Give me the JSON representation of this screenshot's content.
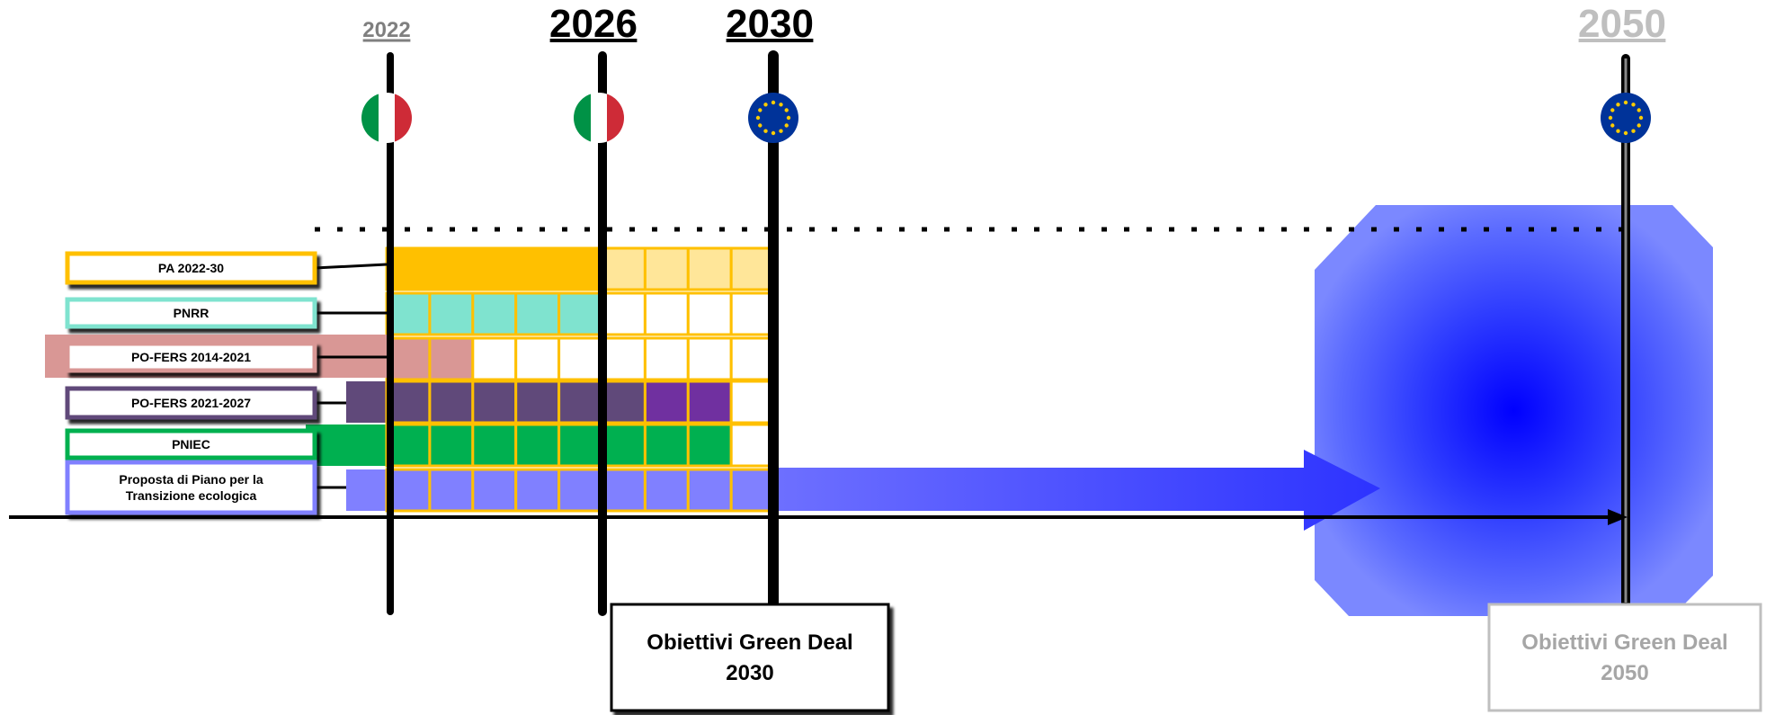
{
  "years": [
    {
      "label": "2022",
      "style": "minor",
      "flag": "italy"
    },
    {
      "label": "2026",
      "style": "major",
      "flag": "italy"
    },
    {
      "label": "2030",
      "style": "major",
      "flag": "eu"
    },
    {
      "label": "2050",
      "style": "faded",
      "flag": "eu"
    }
  ],
  "programs": [
    {
      "label": "PA 2022-30",
      "border": "#FFC000",
      "fill": "#FFC000"
    },
    {
      "label": "PNRR",
      "border": "#7FE3CF",
      "fill": "#7FE3CF"
    },
    {
      "label": "PO-FERS 2014-2021",
      "border": "#D99795",
      "fill": "#D99795"
    },
    {
      "label": "PO-FERS 2021-2027",
      "border": "#60497A",
      "fill": "#60497A"
    },
    {
      "label": "PNIEC",
      "border": "#00B050",
      "fill": "#00B050"
    },
    {
      "label": "Proposta di Piano per la Transizione ecologica",
      "lines": [
        "Proposta di Piano per la",
        "Transizione ecologica"
      ],
      "border": "#8080FF",
      "fill": "#8080FF"
    }
  ],
  "targets": [
    {
      "lines": [
        "Obiettivi Green Deal",
        "2030"
      ],
      "style": "dark"
    },
    {
      "lines": [
        "Obiettivi Green  Deal",
        "2050"
      ],
      "style": "faded"
    }
  ],
  "colors": {
    "grid_line": "#FFC000",
    "pa_light": "#FFE699",
    "po_fers_2021_accent": "#7030A0",
    "arrow_blue": "#3333FF",
    "glow_blue": "#0000FF",
    "italy_green": "#009246",
    "italy_red": "#CE2B37",
    "eu_blue": "#003399",
    "eu_star": "#FFCC00"
  },
  "icons": [
    "italy-flag-icon",
    "eu-flag-icon"
  ]
}
